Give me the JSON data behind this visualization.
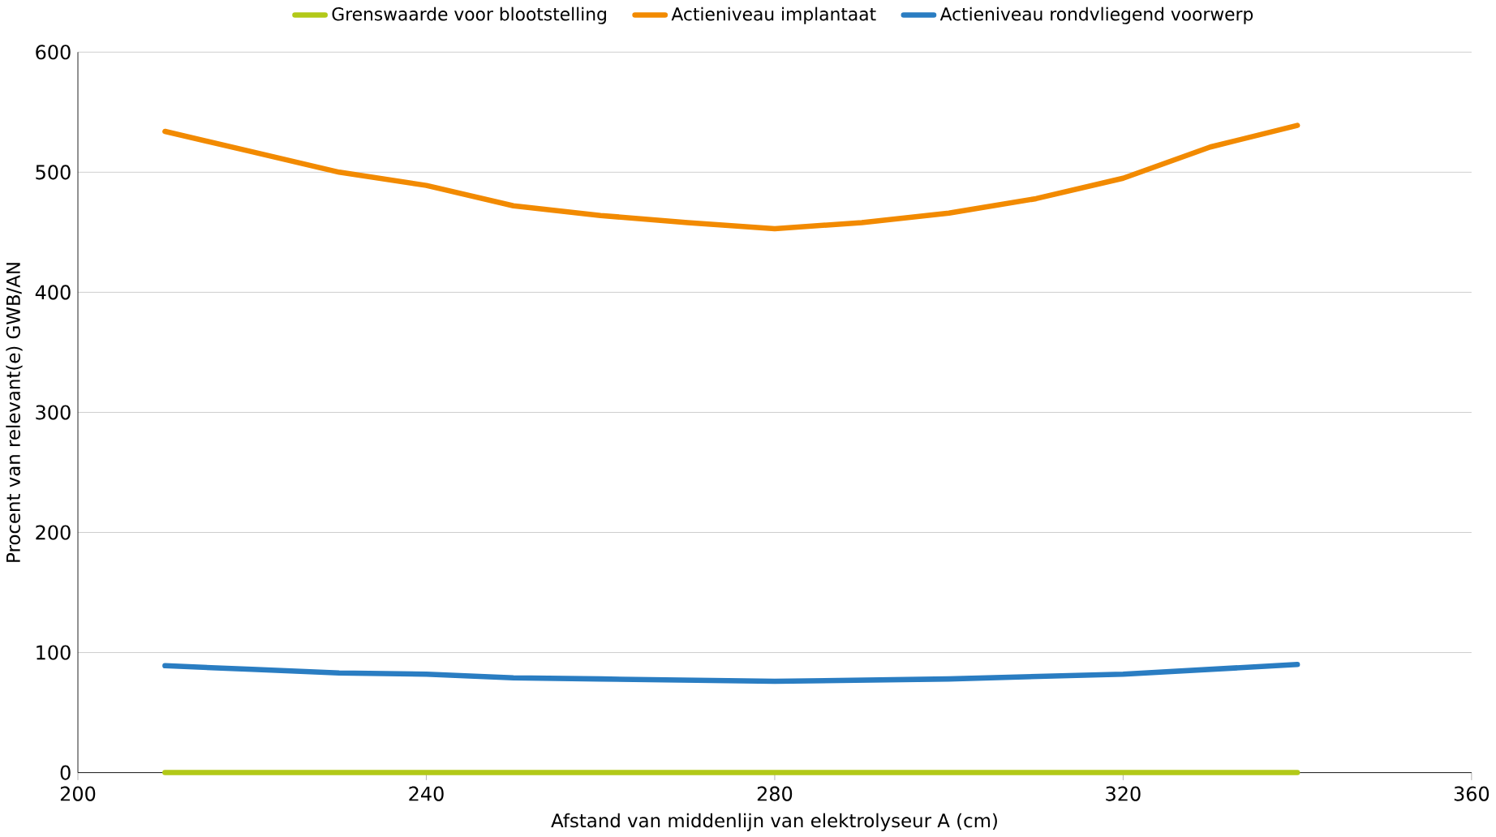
{
  "chart_data": {
    "type": "line",
    "xlabel": "Afstand van middenlijn van elektrolyseur A (cm)",
    "ylabel": "Procent van relevant(e) GWB/AN",
    "x": [
      210,
      220,
      230,
      240,
      250,
      260,
      270,
      280,
      290,
      300,
      310,
      320,
      330,
      340
    ],
    "series": [
      {
        "name": "Grenswaarde voor blootstelling",
        "color": "#b2c918",
        "values": [
          0,
          0,
          0,
          0,
          0,
          0,
          0,
          0,
          0,
          0,
          0,
          0,
          0,
          0
        ]
      },
      {
        "name": "Actieniveau implantaat",
        "color": "#f28a00",
        "values": [
          534,
          517,
          500,
          489,
          472,
          464,
          458,
          453,
          458,
          466,
          478,
          495,
          521,
          539
        ]
      },
      {
        "name": "Actieniveau rondvliegend voorwerp",
        "color": "#2a7dc2",
        "values": [
          89,
          86,
          83,
          82,
          79,
          78,
          77,
          76,
          77,
          78,
          80,
          82,
          86,
          90
        ]
      }
    ],
    "xlim": [
      200,
      360
    ],
    "ylim": [
      0,
      600
    ],
    "xticks": [
      200,
      240,
      280,
      320,
      360
    ],
    "yticks": [
      0,
      100,
      200,
      300,
      400,
      500,
      600
    ],
    "grid": "y",
    "legend": "top",
    "marker": "none",
    "line_style": "solid"
  }
}
